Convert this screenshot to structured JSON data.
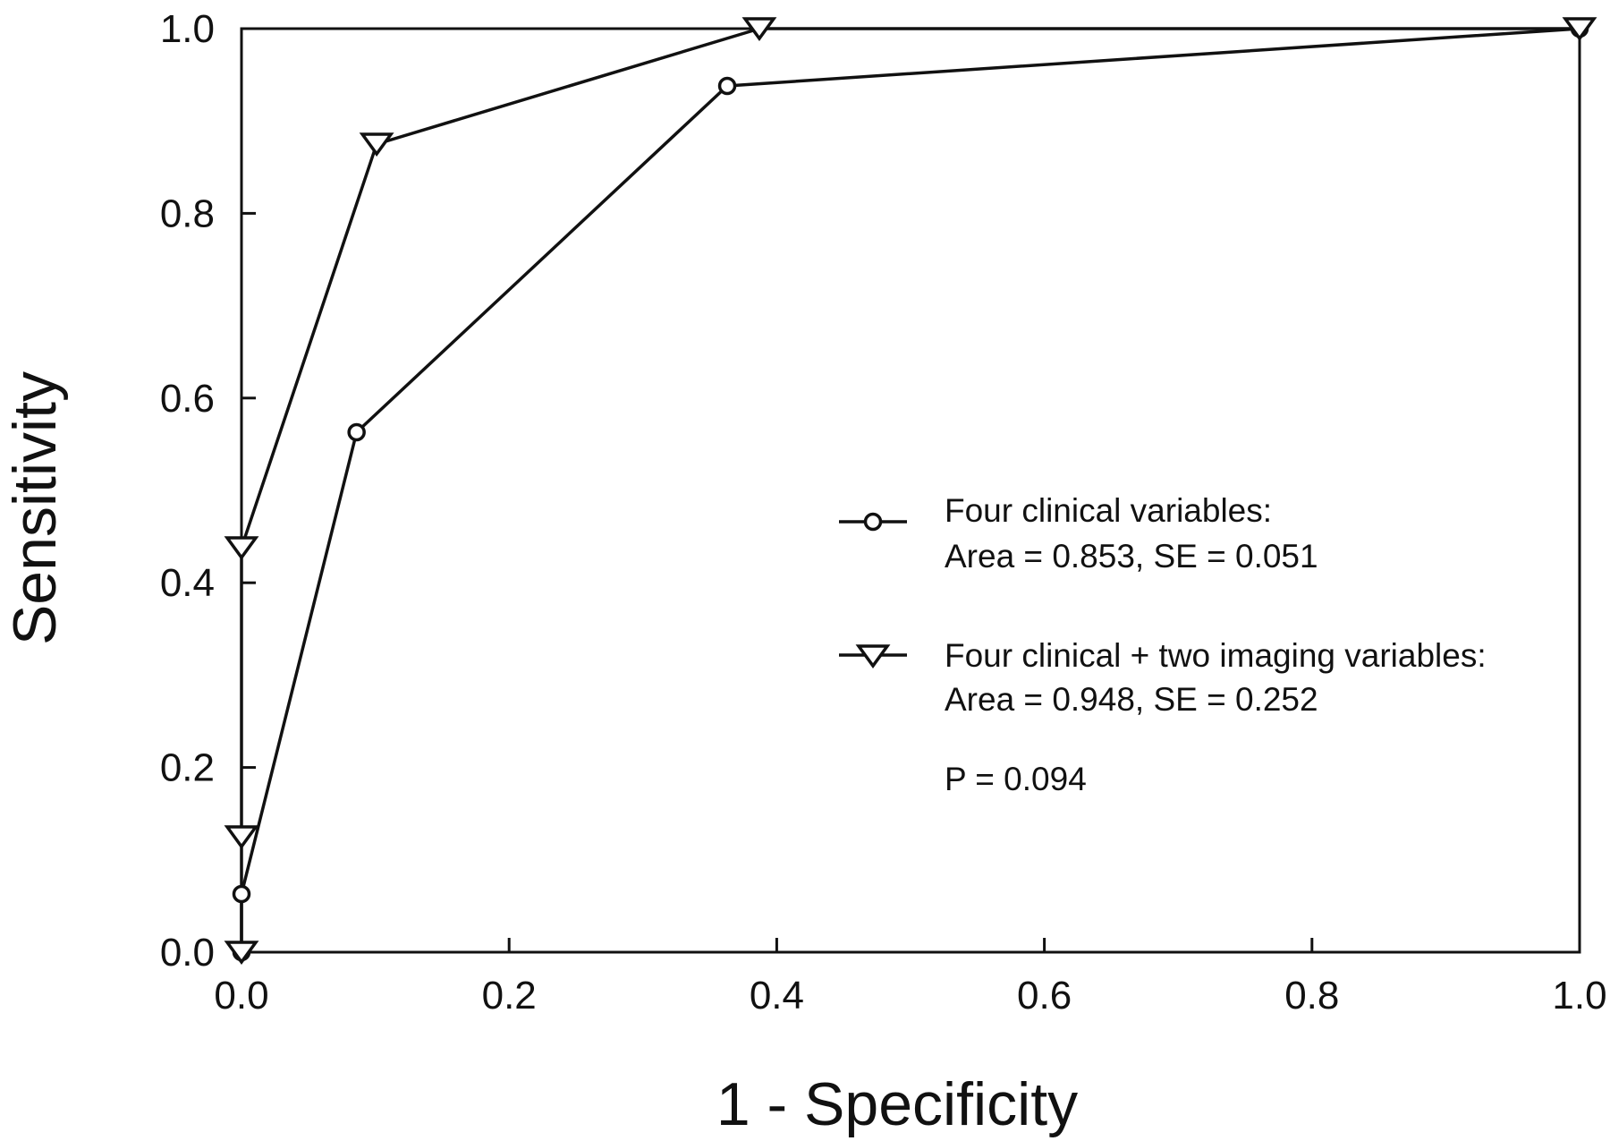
{
  "chart_data": {
    "type": "line",
    "xlabel": "1 - Specificity",
    "ylabel": "Sensitivity",
    "xlim": [
      0,
      1
    ],
    "ylim": [
      0,
      1
    ],
    "x_ticks": [
      "0.0",
      "0.2",
      "0.4",
      "0.6",
      "0.8",
      "1.0"
    ],
    "y_ticks": [
      "0.0",
      "0.2",
      "0.4",
      "0.6",
      "0.8",
      "1.0"
    ],
    "grid": false,
    "legend_position": "center-right",
    "series": [
      {
        "name": "Four clinical variables:",
        "detail": "Area = 0.853, SE = 0.051",
        "marker": "circle",
        "points": [
          {
            "x": 0.0,
            "y": 0.0
          },
          {
            "x": 0.0,
            "y": 0.063
          },
          {
            "x": 0.086,
            "y": 0.563
          },
          {
            "x": 0.363,
            "y": 0.938
          },
          {
            "x": 1.0,
            "y": 1.0
          }
        ]
      },
      {
        "name": "Four clinical + two imaging variables:",
        "detail": "Area = 0.948, SE = 0.252",
        "marker": "triangle-down",
        "points": [
          {
            "x": 0.0,
            "y": 0.0
          },
          {
            "x": 0.0,
            "y": 0.125
          },
          {
            "x": 0.0,
            "y": 0.438
          },
          {
            "x": 0.101,
            "y": 0.875
          },
          {
            "x": 0.387,
            "y": 1.0
          },
          {
            "x": 1.0,
            "y": 1.0
          }
        ]
      }
    ],
    "annotation": "P = 0.094"
  }
}
